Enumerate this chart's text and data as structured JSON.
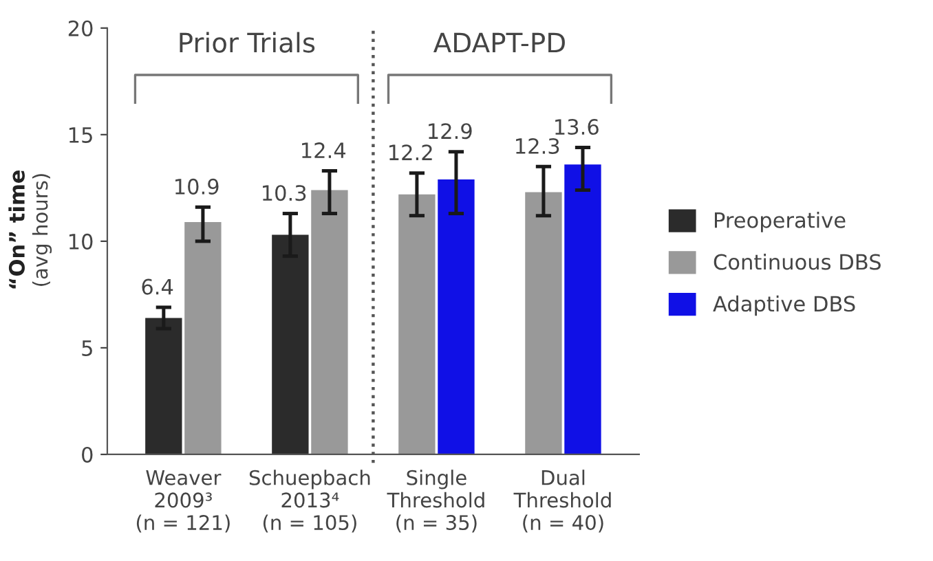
{
  "chart_data": {
    "type": "bar",
    "ylabel": "“On” time\n(avg hours)",
    "categories": [
      "Weaver\n2009³\n(n = 121)",
      "Schuepbach\n2013⁴\n(n = 105)",
      "Single\nThreshold\n(n = 35)",
      "Dual\nThreshold\n(n = 40)"
    ],
    "series": [
      {
        "name": "Preoperative",
        "color": "#2b2b2b",
        "values": [
          6.4,
          10.3,
          null,
          null
        ],
        "errors": [
          [
            5.9,
            6.9
          ],
          [
            9.3,
            11.3
          ],
          null,
          null
        ],
        "value_labels": [
          "6.4",
          "10.3",
          null,
          null
        ]
      },
      {
        "name": "Continuous DBS",
        "color": "#999999",
        "values": [
          10.9,
          12.4,
          12.2,
          12.3
        ],
        "errors": [
          [
            10.0,
            11.6
          ],
          [
            11.3,
            13.3
          ],
          [
            11.2,
            13.2
          ],
          [
            11.2,
            13.5
          ]
        ],
        "value_labels": [
          "10.9",
          "12.4",
          "12.2",
          "12.3"
        ]
      },
      {
        "name": "Adaptive DBS",
        "color": "#1010e6",
        "values": [
          null,
          null,
          12.9,
          13.6
        ],
        "errors": [
          null,
          null,
          [
            11.3,
            14.2
          ],
          [
            12.4,
            14.4
          ]
        ],
        "value_labels": [
          null,
          null,
          "12.9",
          "13.6"
        ]
      }
    ],
    "annotations": [
      "Prior Trials",
      "ADAPT-PD"
    ],
    "ylim": [
      0,
      20
    ],
    "yticks": [
      0,
      5,
      10,
      15,
      20
    ],
    "grid": false,
    "legend": "right"
  }
}
